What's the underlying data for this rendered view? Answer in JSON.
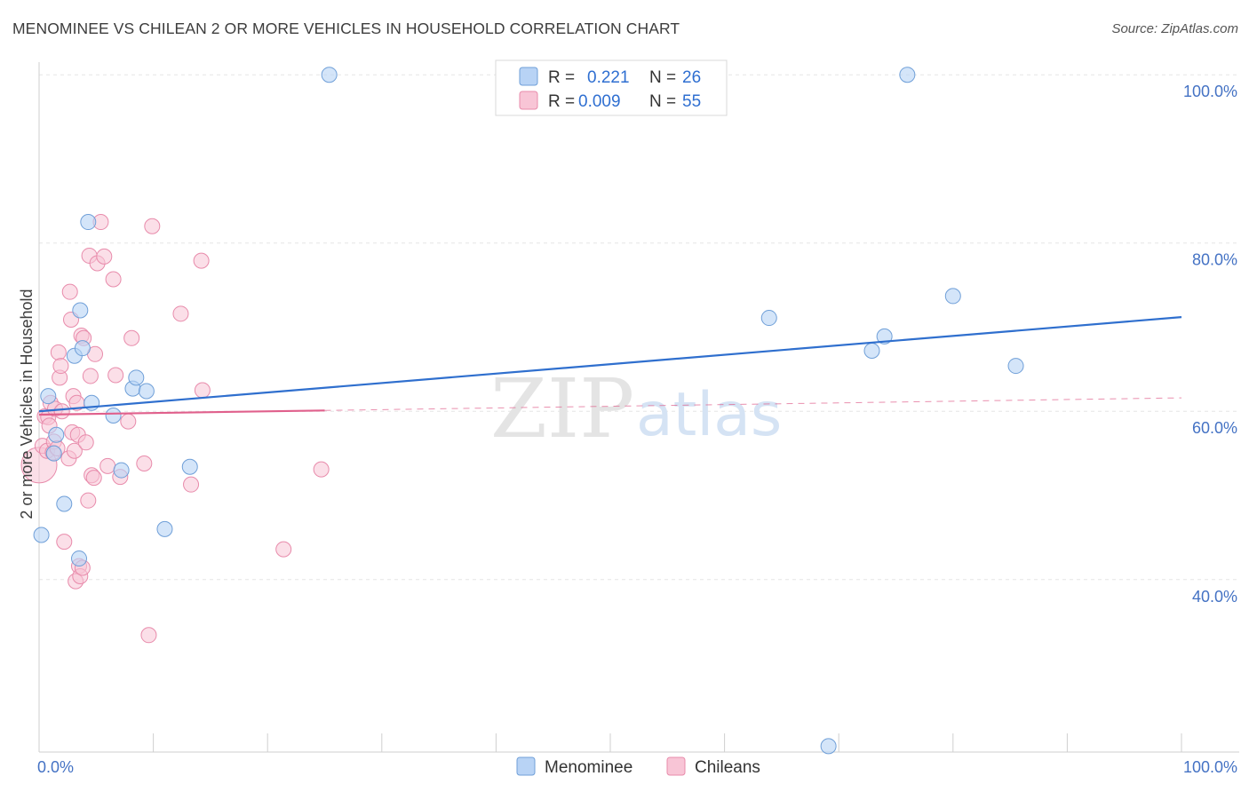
{
  "title": "MENOMINEE VS CHILEAN 2 OR MORE VEHICLES IN HOUSEHOLD CORRELATION CHART",
  "source": "Source: ZipAtlas.com",
  "watermark": {
    "zip": "ZIP",
    "atlas": "atlas"
  },
  "legend_box": {
    "row1": {
      "r_label": "R =",
      "r_value": "0.221",
      "n_label": "N =",
      "n_value": "26"
    },
    "row2": {
      "r_label": "R =",
      "r_value": "0.009",
      "n_label": "N =",
      "n_value": "55"
    }
  },
  "colors": {
    "menominee_fill": "#b8d3f5",
    "menominee_stroke": "#6f9fd8",
    "menominee_line": "#2f6fce",
    "chilean_fill": "#f8c5d6",
    "chilean_stroke": "#e88bab",
    "chilean_line": "#e0608c",
    "grid": "#e6e6e6",
    "tick_text": "#4472c4"
  },
  "chart_data": {
    "type": "scatter",
    "title": "MENOMINEE VS CHILEAN 2 OR MORE VEHICLES IN HOUSEHOLD CORRELATION CHART",
    "xlabel": "",
    "ylabel": "2 or more Vehicles in Household",
    "xlim": [
      0,
      100
    ],
    "ylim": [
      19.5,
      101.5
    ],
    "x_tick_labels": [
      {
        "value": 0,
        "label": "0.0%"
      },
      {
        "value": 100,
        "label": "100.0%"
      }
    ],
    "y_tick_labels": [
      {
        "value": 40,
        "label": "40.0%"
      },
      {
        "value": 60,
        "label": "60.0%"
      },
      {
        "value": 80,
        "label": "80.0%"
      },
      {
        "value": 100,
        "label": "100.0%"
      }
    ],
    "legend": [
      "Menominee",
      "Chileans"
    ],
    "series": [
      {
        "name": "Menominee",
        "r": 0.221,
        "n": 26,
        "trend": {
          "x0": 0,
          "y0": 60.0,
          "x1": 100,
          "y1": 71.2
        },
        "points": [
          [
            0.2,
            45.3
          ],
          [
            0.8,
            61.8
          ],
          [
            1.3,
            55.0
          ],
          [
            1.5,
            57.2
          ],
          [
            2.2,
            49.0
          ],
          [
            3.1,
            66.6
          ],
          [
            3.5,
            42.5
          ],
          [
            3.6,
            72.0
          ],
          [
            3.8,
            67.5
          ],
          [
            4.3,
            82.5
          ],
          [
            4.6,
            61.0
          ],
          [
            6.5,
            59.5
          ],
          [
            7.2,
            53.0
          ],
          [
            8.2,
            62.7
          ],
          [
            8.5,
            64.0
          ],
          [
            9.4,
            62.4
          ],
          [
            11.0,
            46.0
          ],
          [
            13.2,
            53.4
          ],
          [
            25.4,
            100.0
          ],
          [
            63.9,
            71.1
          ],
          [
            69.1,
            20.2
          ],
          [
            72.9,
            67.2
          ],
          [
            74.0,
            68.9
          ],
          [
            76.0,
            100.0
          ],
          [
            80.0,
            73.7
          ],
          [
            85.5,
            65.4
          ]
        ]
      },
      {
        "name": "Chileans",
        "r": 0.009,
        "n": 55,
        "trend": {
          "x0": 0,
          "y0": 59.6,
          "x1": 25,
          "y1": 60.1
        },
        "trend_extension": {
          "x0": 25,
          "y0": 60.1,
          "x1": 100,
          "y1": 61.6
        },
        "points": [
          [
            0.0,
            53.6
          ],
          [
            0.3,
            55.9
          ],
          [
            0.5,
            59.4
          ],
          [
            0.7,
            55.3
          ],
          [
            0.8,
            59.3
          ],
          [
            0.9,
            58.3
          ],
          [
            1.0,
            61.0
          ],
          [
            1.2,
            55.1
          ],
          [
            1.3,
            56.4
          ],
          [
            1.4,
            60.3
          ],
          [
            1.6,
            55.6
          ],
          [
            1.7,
            67.0
          ],
          [
            1.8,
            64.0
          ],
          [
            1.9,
            65.4
          ],
          [
            2.0,
            60.0
          ],
          [
            2.2,
            44.5
          ],
          [
            2.6,
            54.4
          ],
          [
            2.7,
            74.2
          ],
          [
            2.8,
            70.9
          ],
          [
            2.9,
            57.5
          ],
          [
            3.0,
            61.8
          ],
          [
            3.1,
            55.3
          ],
          [
            3.2,
            39.8
          ],
          [
            3.3,
            61.0
          ],
          [
            3.4,
            57.2
          ],
          [
            3.5,
            41.6
          ],
          [
            3.6,
            40.4
          ],
          [
            3.7,
            69.0
          ],
          [
            3.8,
            41.4
          ],
          [
            3.9,
            68.7
          ],
          [
            4.1,
            56.3
          ],
          [
            4.3,
            49.4
          ],
          [
            4.4,
            78.5
          ],
          [
            4.5,
            64.2
          ],
          [
            4.6,
            52.4
          ],
          [
            4.8,
            52.1
          ],
          [
            4.9,
            66.8
          ],
          [
            5.1,
            77.6
          ],
          [
            5.4,
            82.5
          ],
          [
            5.7,
            78.4
          ],
          [
            6.0,
            53.5
          ],
          [
            6.5,
            75.7
          ],
          [
            6.7,
            64.3
          ],
          [
            7.1,
            52.2
          ],
          [
            7.8,
            58.8
          ],
          [
            8.1,
            68.7
          ],
          [
            9.2,
            53.8
          ],
          [
            9.6,
            33.4
          ],
          [
            9.9,
            82.0
          ],
          [
            12.4,
            71.6
          ],
          [
            13.3,
            51.3
          ],
          [
            14.2,
            77.9
          ],
          [
            14.3,
            62.5
          ],
          [
            21.4,
            43.6
          ],
          [
            24.7,
            53.1
          ]
        ]
      }
    ]
  }
}
